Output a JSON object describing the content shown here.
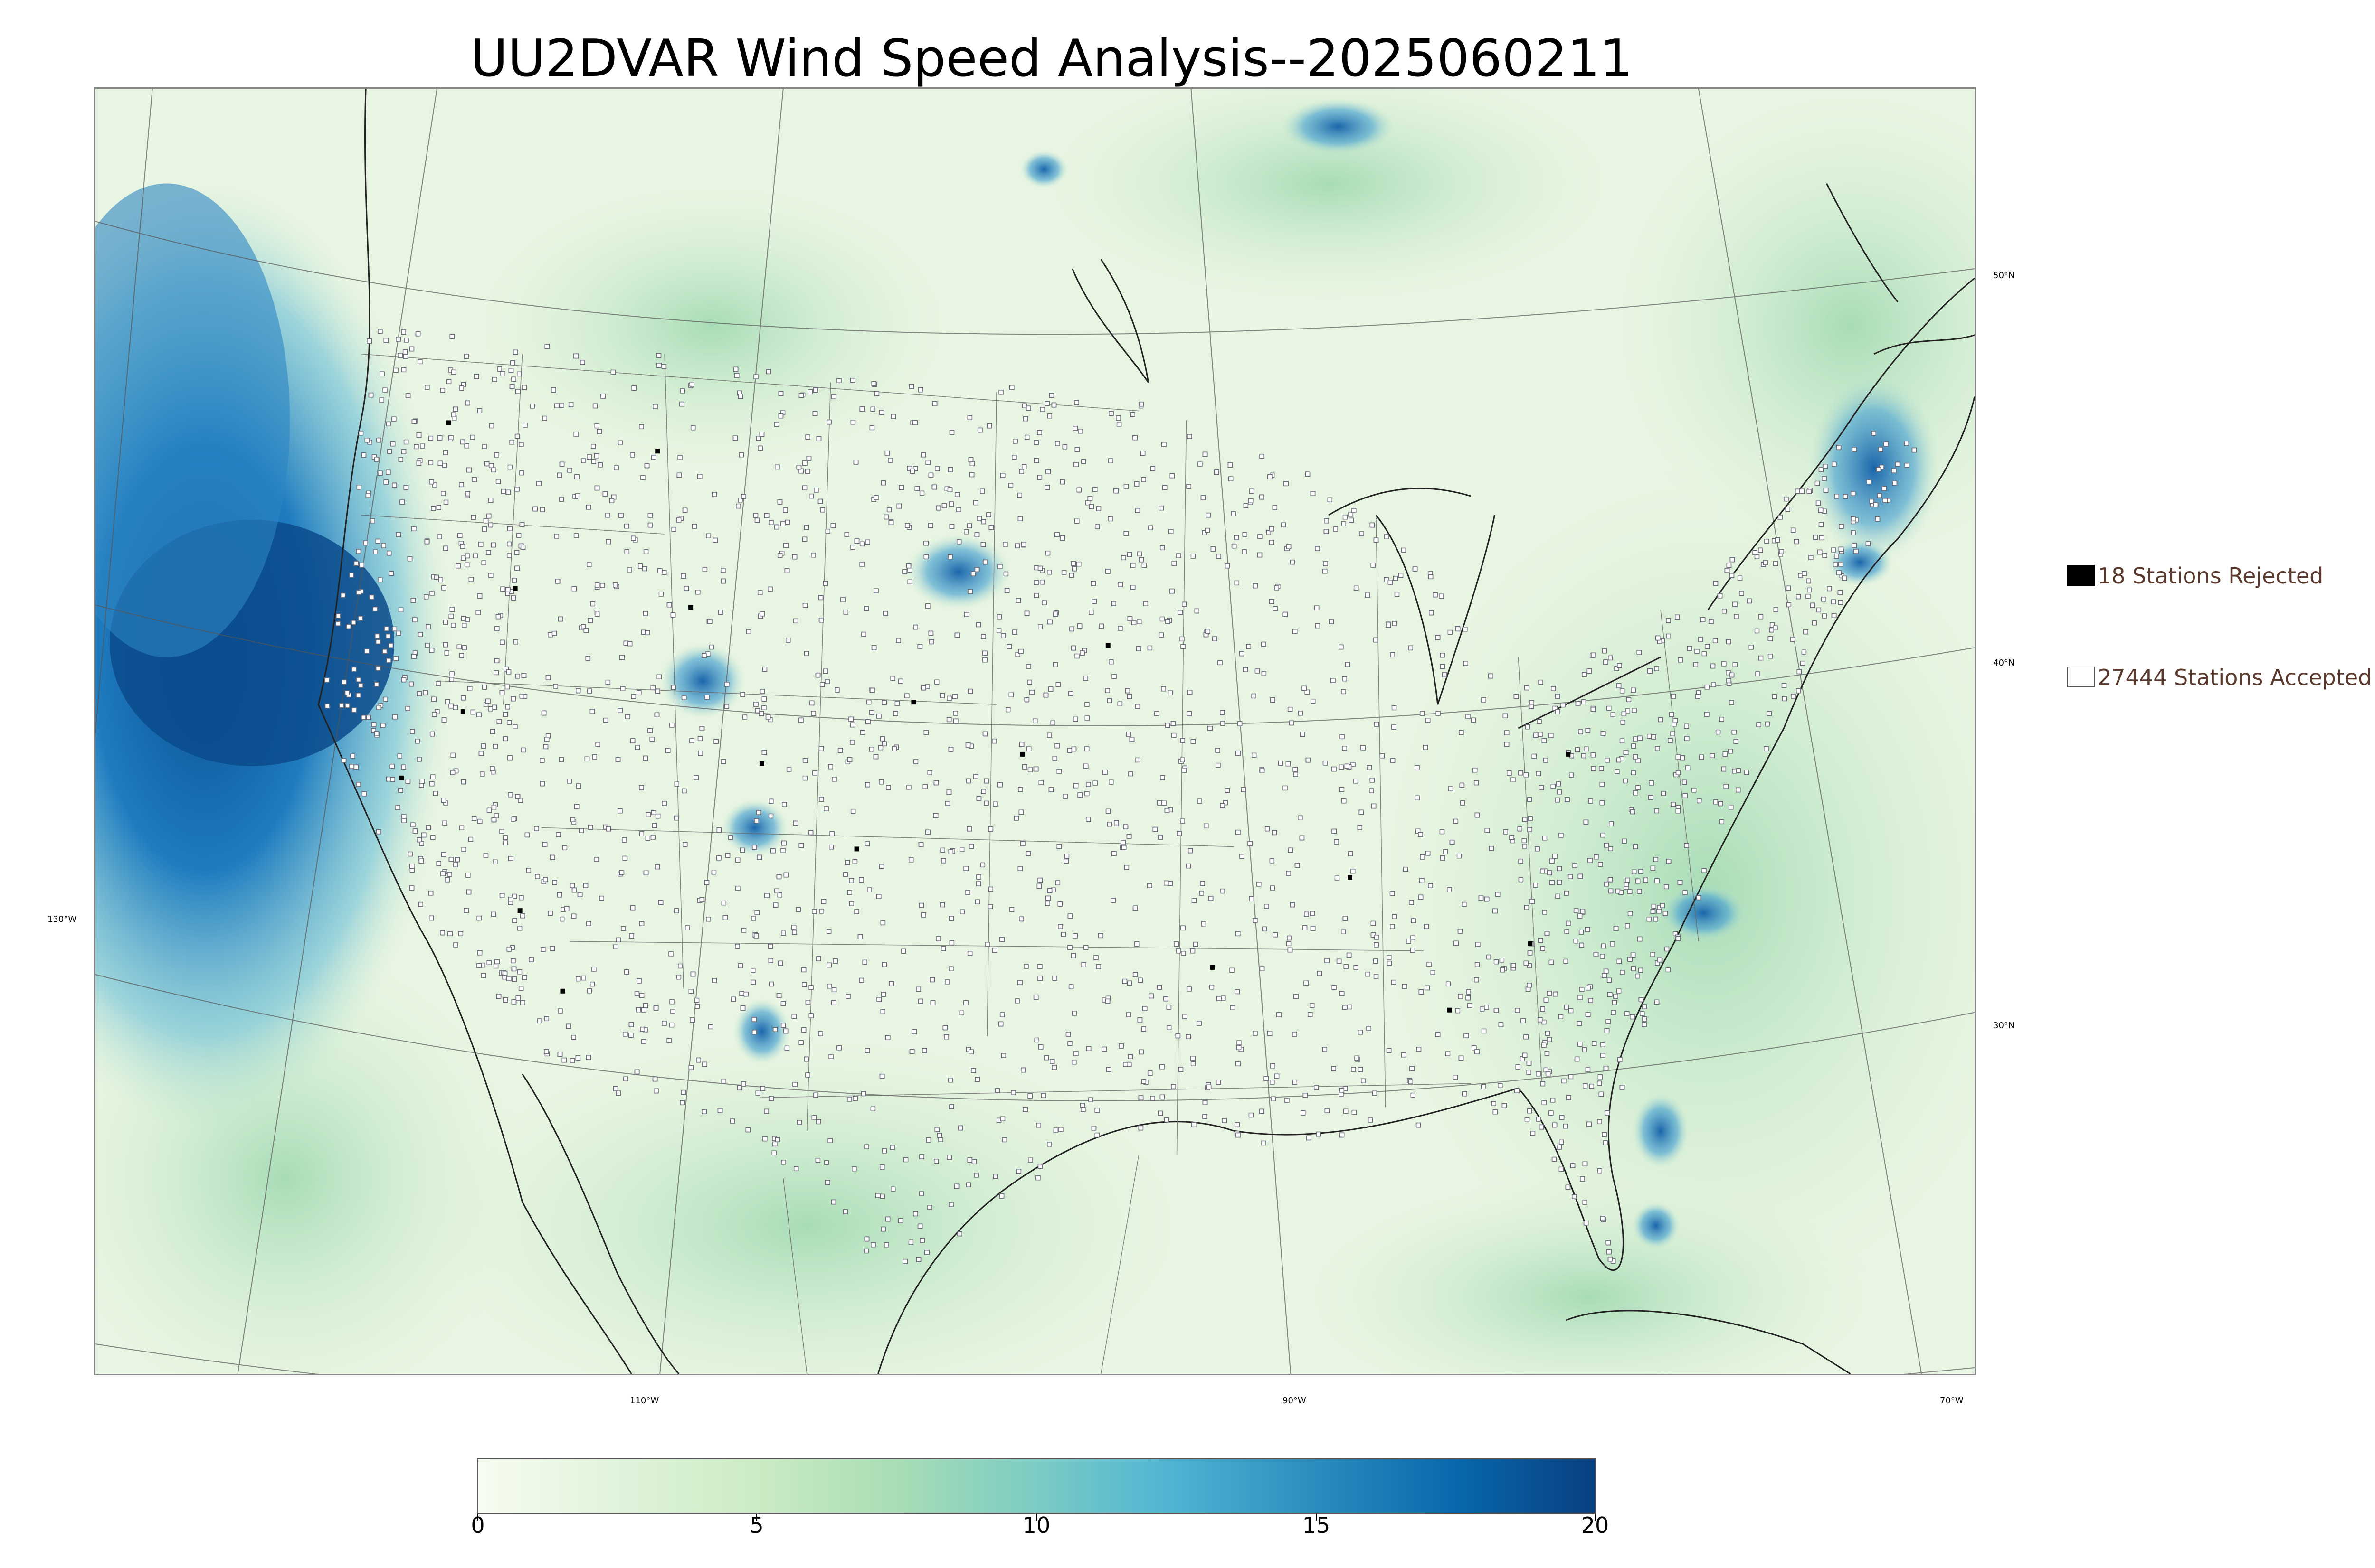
{
  "title": "UU2DVAR Wind Speed Analysis--2025060211",
  "map": {
    "graticule_labels": {
      "lat_50": "50°N",
      "lat_40": "40°N",
      "lat_30": "30°N",
      "lon_130": "130°W",
      "lon_110": "110°W",
      "lon_90": "90°W",
      "lon_70": "70°W"
    },
    "colors": {
      "land_background": "#eaf6e4",
      "ocean_strong": "#1e6fb0",
      "ocean_moderate": "#5fb3d4",
      "light_green": "#c9e9c4",
      "station_marker": "#6b6b78"
    }
  },
  "legend": {
    "rejected": {
      "label": "18 Stations Rejected",
      "swatch_color": "#000000",
      "count": 18
    },
    "accepted": {
      "label": "27444 Stations Accepted",
      "swatch_color": "#ffffff",
      "count": 27444
    }
  },
  "colorbar": {
    "min": 0,
    "max": 20,
    "ticks": [
      "0",
      "5",
      "10",
      "15",
      "20"
    ],
    "colors": [
      "#f7fcf0",
      "#e0f3db",
      "#ccebc5",
      "#a8ddb5",
      "#7bccc4",
      "#4eb3d3",
      "#2b8cbe",
      "#0868ac",
      "#084081"
    ]
  }
}
